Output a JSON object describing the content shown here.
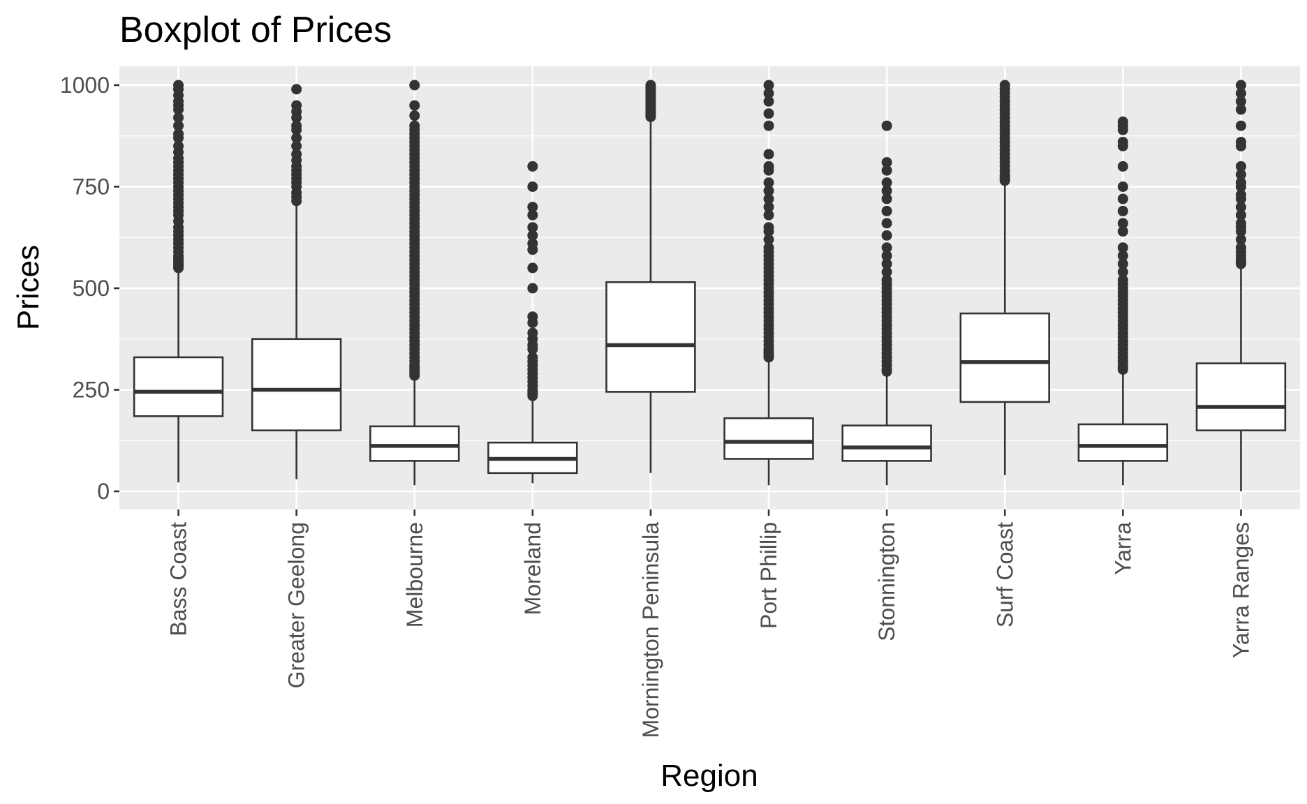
{
  "chart_data": {
    "type": "boxplot",
    "title": "Boxplot of Prices",
    "xlabel": "Region",
    "ylabel": "Prices",
    "ylim": [
      -50,
      1050
    ],
    "yticks": [
      0,
      250,
      500,
      750,
      1000
    ],
    "ytick_labels": [
      "0",
      "250",
      "500",
      "750",
      "1000"
    ],
    "grid": true,
    "legend": "none",
    "categories": [
      "Bass Coast",
      "Greater Geelong",
      "Melbourne",
      "Moreland",
      "Mornington Peninsula",
      "Port Phillip",
      "Stonnington",
      "Surf Coast",
      "Yarra",
      "Yarra Ranges"
    ],
    "boxes": [
      {
        "category": "Bass Coast",
        "whisker_low": 22,
        "q1": 185,
        "median": 245,
        "q3": 330,
        "whisker_high": 545,
        "outliers": [
          550,
          555,
          560,
          565,
          570,
          575,
          580,
          590,
          600,
          610,
          620,
          630,
          640,
          650,
          665,
          680,
          690,
          700,
          710,
          720,
          730,
          740,
          750,
          760,
          770,
          780,
          790,
          800,
          810,
          820,
          835,
          850,
          870,
          880,
          900,
          920,
          940,
          950,
          960,
          975,
          990,
          1000
        ]
      },
      {
        "category": "Greater Geelong",
        "whisker_low": 30,
        "q1": 150,
        "median": 250,
        "q3": 375,
        "whisker_high": 710,
        "outliers": [
          715,
          725,
          735,
          750,
          760,
          770,
          780,
          790,
          800,
          815,
          830,
          850,
          870,
          890,
          900,
          920,
          935,
          950,
          990
        ]
      },
      {
        "category": "Melbourne",
        "whisker_low": 15,
        "q1": 75,
        "median": 112,
        "q3": 160,
        "whisker_high": 280,
        "outliers": [
          285,
          290,
          295,
          300,
          305,
          310,
          320,
          330,
          340,
          350,
          360,
          370,
          380,
          390,
          400,
          410,
          420,
          430,
          440,
          450,
          460,
          470,
          480,
          490,
          500,
          510,
          520,
          530,
          540,
          550,
          560,
          570,
          580,
          590,
          600,
          610,
          620,
          630,
          640,
          650,
          660,
          670,
          680,
          690,
          700,
          710,
          720,
          730,
          740,
          750,
          760,
          770,
          780,
          790,
          800,
          810,
          820,
          830,
          840,
          850,
          860,
          870,
          880,
          890,
          900,
          925,
          950,
          1000
        ]
      },
      {
        "category": "Moreland",
        "whisker_low": 20,
        "q1": 45,
        "median": 80,
        "q3": 120,
        "whisker_high": 230,
        "outliers": [
          235,
          240,
          245,
          250,
          260,
          270,
          280,
          290,
          300,
          310,
          320,
          330,
          350,
          360,
          375,
          390,
          415,
          430,
          500,
          550,
          595,
          610,
          630,
          650,
          680,
          700,
          750,
          800
        ]
      },
      {
        "category": "Mornington Peninsula",
        "whisker_low": 45,
        "q1": 245,
        "median": 360,
        "q3": 515,
        "whisker_high": 918,
        "outliers": [
          922,
          926,
          930,
          935,
          940,
          945,
          950,
          955,
          960,
          965,
          970,
          975,
          980,
          985,
          990,
          995,
          1000
        ]
      },
      {
        "category": "Port Phillip",
        "whisker_low": 15,
        "q1": 80,
        "median": 122,
        "q3": 180,
        "whisker_high": 325,
        "outliers": [
          330,
          335,
          340,
          345,
          350,
          360,
          370,
          380,
          390,
          400,
          410,
          420,
          430,
          440,
          450,
          460,
          470,
          480,
          490,
          500,
          510,
          520,
          530,
          540,
          550,
          560,
          570,
          580,
          590,
          600,
          620,
          640,
          650,
          680,
          700,
          720,
          740,
          760,
          790,
          800,
          830,
          900,
          930,
          960,
          980,
          1000
        ]
      },
      {
        "category": "Stonnington",
        "whisker_low": 15,
        "q1": 75,
        "median": 108,
        "q3": 162,
        "whisker_high": 290,
        "outliers": [
          295,
          300,
          310,
          320,
          330,
          340,
          350,
          360,
          370,
          380,
          390,
          400,
          410,
          420,
          430,
          440,
          450,
          460,
          470,
          480,
          490,
          500,
          510,
          520,
          540,
          560,
          580,
          600,
          630,
          660,
          690,
          720,
          740,
          760,
          790,
          810,
          900
        ]
      },
      {
        "category": "Surf Coast",
        "whisker_low": 40,
        "q1": 220,
        "median": 318,
        "q3": 438,
        "whisker_high": 760,
        "outliers": [
          765,
          770,
          775,
          780,
          790,
          800,
          810,
          820,
          830,
          840,
          850,
          860,
          870,
          880,
          890,
          900,
          910,
          920,
          930,
          940,
          950,
          960,
          970,
          980,
          990,
          1000
        ]
      },
      {
        "category": "Yarra",
        "whisker_low": 15,
        "q1": 75,
        "median": 112,
        "q3": 165,
        "whisker_high": 295,
        "outliers": [
          300,
          305,
          310,
          320,
          330,
          340,
          350,
          360,
          370,
          380,
          390,
          400,
          410,
          420,
          430,
          440,
          450,
          460,
          470,
          480,
          490,
          500,
          510,
          520,
          540,
          560,
          580,
          600,
          640,
          660,
          690,
          720,
          750,
          800,
          850,
          860,
          890,
          900,
          910
        ]
      },
      {
        "category": "Yarra Ranges",
        "whisker_low": 0,
        "q1": 150,
        "median": 208,
        "q3": 315,
        "whisker_high": 555,
        "outliers": [
          560,
          565,
          570,
          580,
          590,
          600,
          620,
          640,
          650,
          660,
          680,
          700,
          720,
          730,
          750,
          760,
          780,
          800,
          850,
          860,
          900,
          940,
          960,
          980,
          1000
        ]
      }
    ]
  }
}
